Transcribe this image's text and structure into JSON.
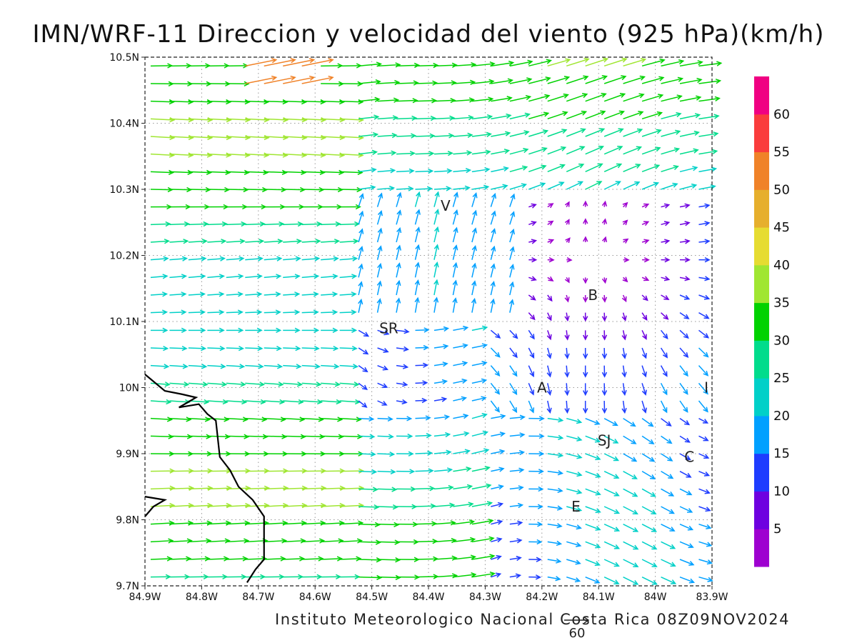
{
  "title": "IMN/WRF-11 Direccion y velocidad del viento (925 hPa)(km/h)",
  "footer": "Instituto Meteorologico Nacional Costa Rica 08Z09NOV2024",
  "reference_vector": {
    "value": 60,
    "label": "60"
  },
  "axes": {
    "x_ticks": [
      "84.9W",
      "84.8W",
      "84.7W",
      "84.6W",
      "84.5W",
      "84.4W",
      "84.3W",
      "84.2W",
      "84.1W",
      "84W",
      "83.9W"
    ],
    "y_ticks": [
      "10.5N",
      "10.4N",
      "10.3N",
      "10.2N",
      "10.1N",
      "10N",
      "9.9N",
      "9.8N",
      "9.7N"
    ],
    "lon_range": [
      -84.9,
      -83.9
    ],
    "lat_range": [
      9.7,
      10.5
    ],
    "grid": "dotted"
  },
  "colorbar": {
    "colors": [
      "#9e00d0",
      "#6e00e0",
      "#1e3cff",
      "#00a0ff",
      "#00d0c8",
      "#00dc8c",
      "#00d200",
      "#a0e632",
      "#e6dc32",
      "#e6af2d",
      "#f08228",
      "#fa3c3c",
      "#f00082"
    ],
    "labels": [
      "5",
      "10",
      "15",
      "20",
      "25",
      "30",
      "35",
      "40",
      "45",
      "50",
      "55",
      "60"
    ],
    "orientation": "vertical"
  },
  "places": [
    {
      "label": "V",
      "lon": -84.37,
      "lat": 10.275
    },
    {
      "label": "SR",
      "lon": -84.47,
      "lat": 10.09
    },
    {
      "label": "B",
      "lon": -84.11,
      "lat": 10.14
    },
    {
      "label": "A",
      "lon": -84.2,
      "lat": 10.0
    },
    {
      "label": "I",
      "lon": -83.91,
      "lat": 10.0
    },
    {
      "label": "SJ",
      "lon": -84.09,
      "lat": 9.92
    },
    {
      "label": "C",
      "lon": -83.94,
      "lat": 9.895
    },
    {
      "label": "E",
      "lon": -84.14,
      "lat": 9.82
    }
  ],
  "coastline": [
    [
      -84.9,
      10.02
    ],
    [
      -84.865,
      9.995
    ],
    [
      -84.835,
      9.99
    ],
    [
      -84.81,
      9.985
    ],
    [
      -84.84,
      9.97
    ],
    [
      -84.805,
      9.975
    ],
    [
      -84.79,
      9.96
    ],
    [
      -84.775,
      9.95
    ],
    [
      -84.768,
      9.895
    ],
    [
      -84.75,
      9.875
    ],
    [
      -84.735,
      9.85
    ],
    [
      -84.71,
      9.83
    ],
    [
      -84.69,
      9.805
    ],
    [
      -84.69,
      9.78
    ],
    [
      -84.69,
      9.74
    ],
    [
      -84.705,
      9.725
    ],
    [
      -84.72,
      9.705
    ]
  ],
  "coastline_west": [
    [
      -84.9,
      9.805
    ],
    [
      -84.885,
      9.82
    ],
    [
      -84.865,
      9.83
    ],
    [
      -84.9,
      9.835
    ]
  ],
  "wind_field_note": "Wind vectors (km/h): strong westerlies 25-40 over west and north; weaker 5-15 flow and rotation over central highlands; southwest jet near 10.45N up to 55-60."
}
